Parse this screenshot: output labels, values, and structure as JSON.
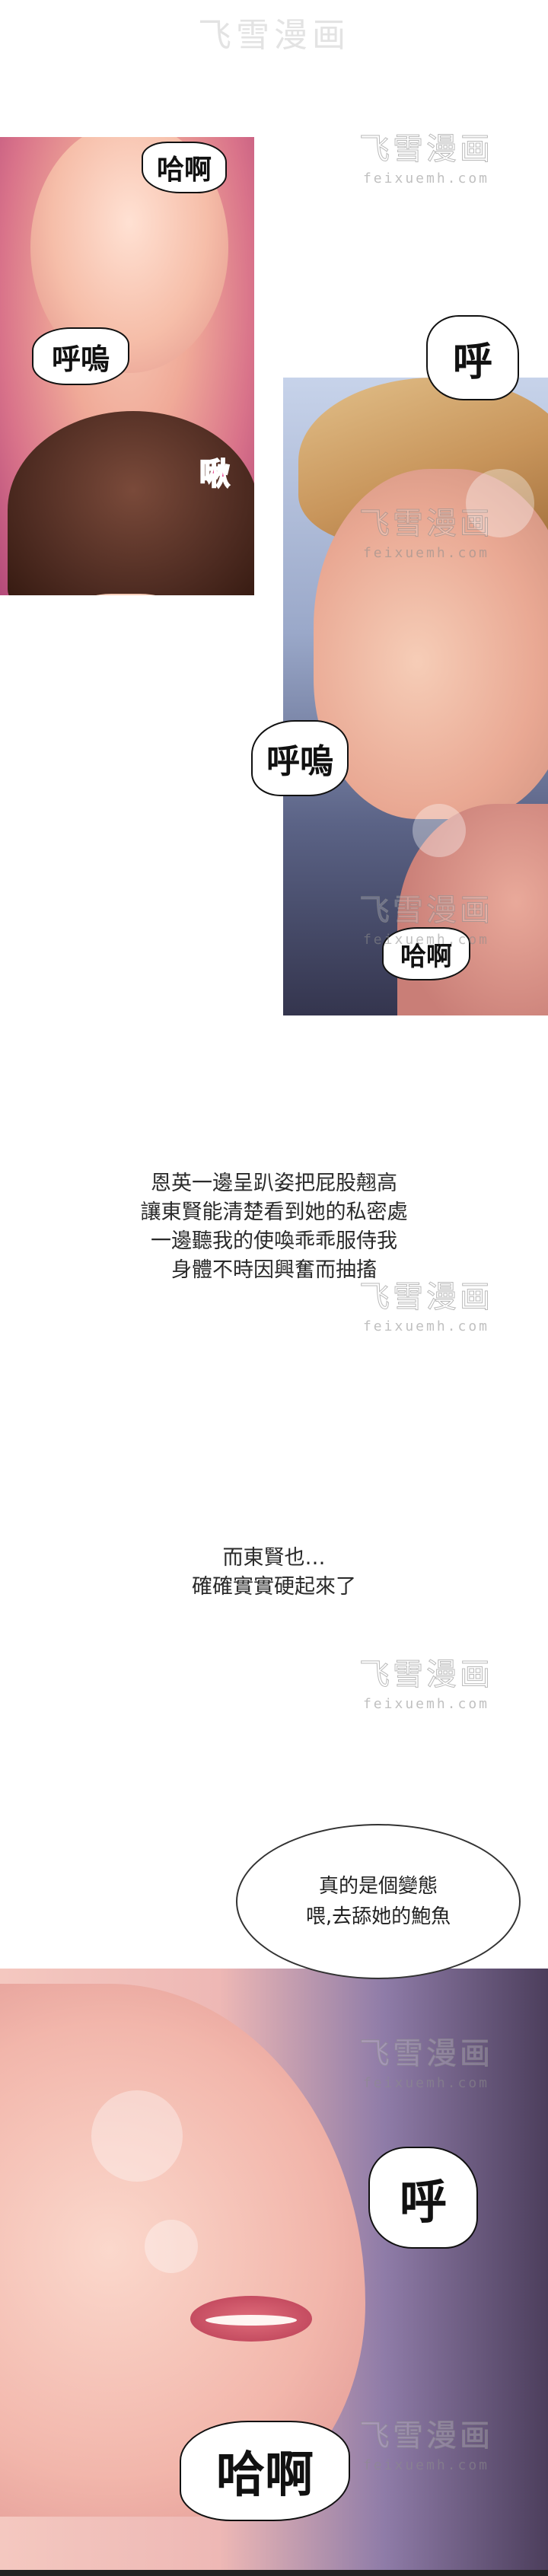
{
  "sfx": {
    "p1_haah": "哈啊",
    "p1_huwu": "呼嗚",
    "p1_chu": "啾",
    "p2_hu": "呼",
    "p2_huwu": "呼嗚",
    "p2_haah": "哈啊",
    "p3_hu": "呼",
    "p3_haah": "哈啊"
  },
  "narration1": [
    "恩英一邊呈趴姿把屁股翹高",
    "讓東賢能清楚看到她的私密處",
    "一邊聽我的使喚乖乖服侍我",
    "身體不時因興奮而抽搐"
  ],
  "narration2": [
    "而東賢也…",
    "確確實實硬起來了"
  ],
  "bubble": [
    "真的是個變態",
    "喂,去舔她的鮑魚"
  ],
  "watermark": {
    "cn": "飞雪漫画",
    "en": "feixuemh.com"
  }
}
